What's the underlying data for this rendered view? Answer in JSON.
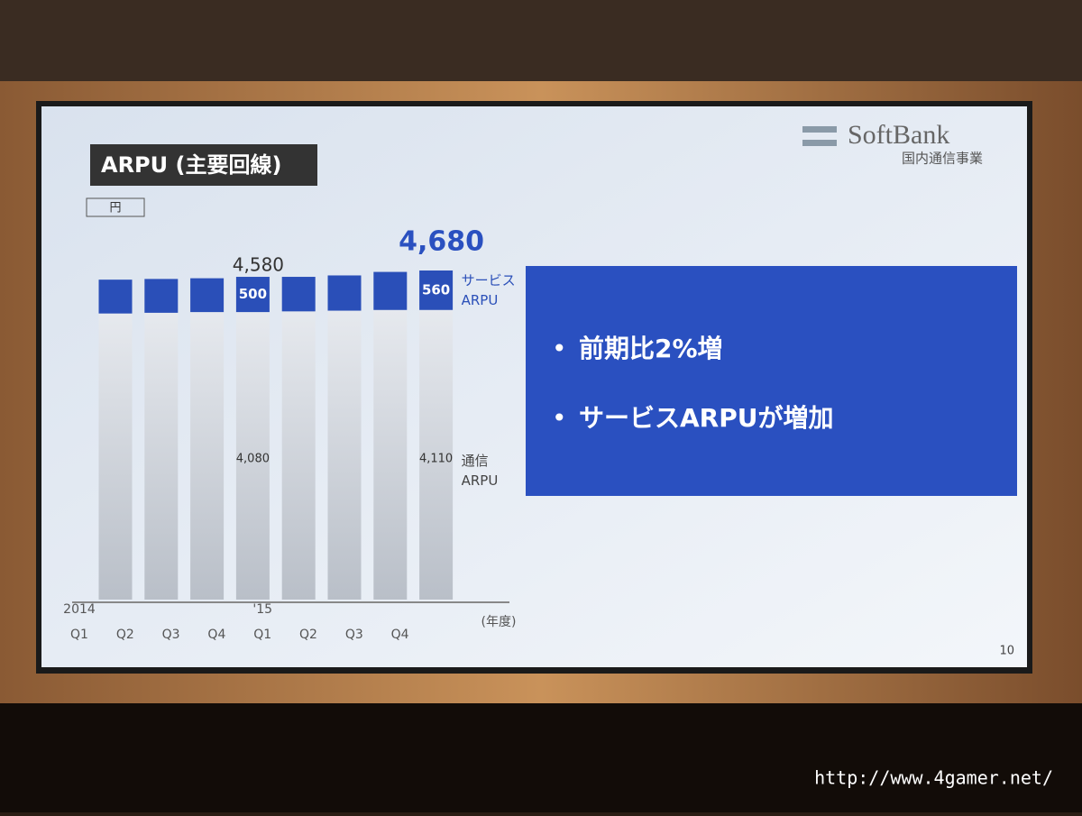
{
  "slide": {
    "title": "ARPU (主要回線)",
    "unit": "円",
    "logo": "SoftBank",
    "logo_subtitle": "国内通信事業",
    "bullets": [
      "前期比2%増",
      "サービスARPUが増加"
    ],
    "page_number": "10"
  },
  "watermark": "http://www.4gamer.net/",
  "chart_data": {
    "type": "stacked-bar",
    "categories": [
      "Q1",
      "Q2",
      "Q3",
      "Q4",
      "Q1",
      "Q2",
      "Q3",
      "Q4"
    ],
    "year_labels": [
      "2014",
      null,
      null,
      null,
      "'15",
      null,
      null,
      null
    ],
    "x_label": "(年度)",
    "series": [
      {
        "name": "通信 ARPU",
        "color": "#d4d7dc",
        "values": [
          4060,
          4070,
          4080,
          4080,
          4090,
          4100,
          4110,
          4110
        ],
        "value_labels": [
          null,
          null,
          null,
          "4,080",
          null,
          null,
          null,
          "4,110"
        ]
      },
      {
        "name": "サービス ARPU",
        "color": "#2a4fb8",
        "values": [
          480,
          480,
          480,
          500,
          490,
          500,
          540,
          560
        ],
        "value_labels": [
          null,
          null,
          null,
          "500",
          null,
          null,
          null,
          "560"
        ]
      }
    ],
    "totals": [
      null,
      null,
      null,
      4580,
      null,
      null,
      null,
      4680
    ],
    "total_labels": [
      null,
      null,
      null,
      "4,580",
      null,
      null,
      null,
      "4,680"
    ]
  }
}
